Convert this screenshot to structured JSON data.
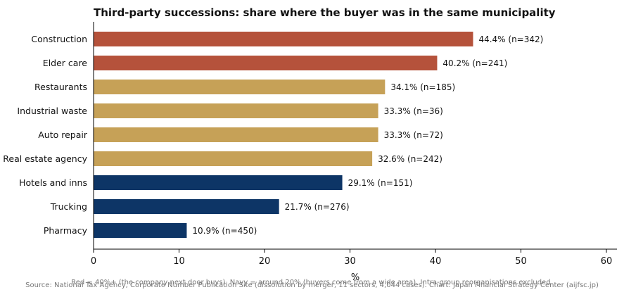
{
  "chart_data": {
    "type": "bar",
    "orientation": "horizontal",
    "title": "Third-party successions: share where the buyer was in the same municipality",
    "xlabel": "%",
    "xlim": [
      0,
      60
    ],
    "xticks": [
      0,
      10,
      20,
      30,
      40,
      50,
      60
    ],
    "grid": false,
    "categories": [
      "Construction",
      "Elder care",
      "Restaurants",
      "Industrial waste",
      "Auto repair",
      "Real estate agency",
      "Hotels and inns",
      "Trucking",
      "Pharmacy"
    ],
    "values": [
      44.4,
      40.2,
      34.1,
      33.3,
      33.3,
      32.6,
      29.1,
      21.7,
      10.9
    ],
    "value_labels": [
      "44.4%  (n=342)",
      "40.2%  (n=241)",
      "34.1%  (n=185)",
      "33.3%  (n=36)",
      "33.3%  (n=72)",
      "32.6%  (n=242)",
      "29.1%  (n=151)",
      "21.7%  (n=276)",
      "10.9%  (n=450)"
    ],
    "colors": [
      "#b5523b",
      "#b5523b",
      "#c6a157",
      "#c6a157",
      "#c6a157",
      "#c6a157",
      "#0d3566",
      "#0d3566",
      "#0d3566"
    ],
    "note": "Red = 40%+ (the company next door buys). Navy = around 20% (buyers come from a wide area). Intra-group reorganisations excluded.",
    "source": "Source: National Tax Agency, Corporate Number Publication Site (dissolution by merger, 11 sectors, 4,044 cases). Chart: Japan Financial Strategy Center (aijfsc.jp)"
  }
}
